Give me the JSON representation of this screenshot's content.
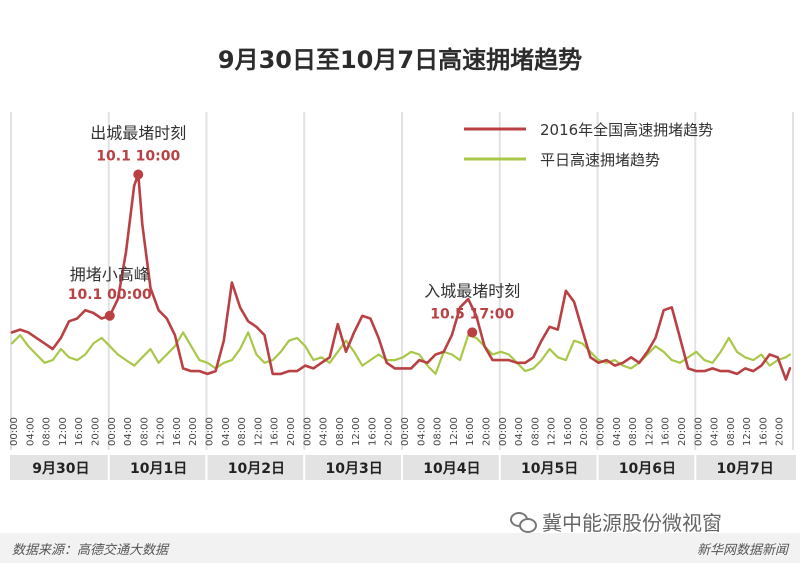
{
  "title": "9月30日至10月7日高速拥堵趋势",
  "footer": {
    "source": "数据来源：高德交通大数据",
    "credit": "新华网数据新闻",
    "wechat": "冀中能源股份微视窗"
  },
  "colors": {
    "national": "#b94043",
    "weekday": "#a9c84a",
    "axis_band": "#e3e3e3",
    "annotation": "#b94043"
  },
  "annotations": [
    {
      "label": "拥堵小高峰",
      "time": "10.1 00:00"
    },
    {
      "label": "出城最堵时刻",
      "time": "10.1 10:00"
    },
    {
      "label": "入城最堵时刻",
      "time": "10.5 17:00"
    }
  ],
  "chart_data": {
    "type": "line",
    "title": "9月30日至10月7日高速拥堵趋势",
    "hours_per_day": 24,
    "days": [
      "9月30日",
      "10月1日",
      "10月2日",
      "10月3日",
      "10月4日",
      "10月5日",
      "10月6日",
      "10月7日"
    ],
    "tick_labels": [
      "00:00",
      "04:00",
      "08:00",
      "12:00",
      "16:00",
      "20:00"
    ],
    "ylim": [
      0,
      100
    ],
    "legend_position": "top-right",
    "grid": "vertical day separators",
    "series": [
      {
        "name": "2016年全国高速拥堵趋势",
        "color": "#b94043",
        "x_hours": [
          0,
          2,
          4,
          6,
          8,
          10,
          12,
          14,
          16,
          18,
          20,
          22,
          24,
          26,
          28,
          30,
          31,
          32,
          34,
          36,
          38,
          40,
          42,
          44,
          46,
          48,
          50,
          52,
          54,
          56,
          58,
          60,
          62,
          64,
          66,
          68,
          70,
          72,
          74,
          76,
          78,
          80,
          82,
          84,
          86,
          88,
          90,
          92,
          94,
          96,
          98,
          100,
          102,
          104,
          106,
          108,
          110,
          112,
          114,
          116,
          118,
          120,
          122,
          124,
          126,
          128,
          130,
          132,
          134,
          136,
          138,
          140,
          142,
          144,
          146,
          148,
          150,
          152,
          154,
          156,
          158,
          160,
          162,
          164,
          166,
          168,
          170,
          172,
          174,
          176,
          178,
          180,
          182,
          184,
          186,
          188,
          190,
          191
        ],
        "values": [
          19,
          20,
          19,
          17,
          15,
          13,
          17,
          23,
          24,
          27,
          26,
          24,
          25,
          31,
          48,
          72,
          76,
          58,
          35,
          27,
          24,
          18,
          6,
          5,
          5,
          4,
          5,
          16,
          37,
          28,
          23,
          21,
          18,
          4,
          4,
          5,
          5,
          7,
          6,
          8,
          10,
          22,
          12,
          19,
          25,
          24,
          17,
          8,
          6,
          6,
          6,
          9,
          8,
          11,
          12,
          18,
          28,
          31,
          25,
          14,
          9,
          9,
          9,
          8,
          8,
          10,
          16,
          21,
          20,
          34,
          30,
          20,
          10,
          8,
          9,
          7,
          8,
          10,
          8,
          12,
          17,
          27,
          28,
          17,
          6,
          5,
          5,
          6,
          5,
          5,
          4,
          6,
          5,
          7,
          11,
          10,
          2,
          6
        ]
      },
      {
        "name": "平日高速拥堵趋势",
        "color": "#a9c84a",
        "x_hours": [
          0,
          2,
          4,
          6,
          8,
          10,
          12,
          14,
          16,
          18,
          20,
          22,
          24,
          26,
          28,
          30,
          32,
          34,
          36,
          38,
          40,
          42,
          44,
          46,
          48,
          50,
          52,
          54,
          56,
          58,
          60,
          62,
          64,
          66,
          68,
          70,
          72,
          74,
          76,
          78,
          80,
          82,
          84,
          86,
          88,
          90,
          92,
          94,
          96,
          98,
          100,
          102,
          104,
          106,
          108,
          110,
          112,
          114,
          116,
          118,
          120,
          122,
          124,
          126,
          128,
          130,
          132,
          134,
          136,
          138,
          140,
          142,
          144,
          146,
          148,
          150,
          152,
          154,
          156,
          158,
          160,
          162,
          164,
          166,
          168,
          170,
          172,
          174,
          176,
          178,
          180,
          182,
          184,
          186,
          188,
          190,
          191
        ],
        "values": [
          15,
          18,
          14,
          11,
          8,
          9,
          13,
          10,
          9,
          11,
          15,
          17,
          14,
          11,
          9,
          7,
          10,
          13,
          8,
          11,
          14,
          19,
          14,
          9,
          8,
          6,
          8,
          9,
          13,
          19,
          11,
          8,
          9,
          12,
          16,
          17,
          14,
          9,
          10,
          8,
          12,
          16,
          12,
          7,
          9,
          11,
          9,
          9,
          10,
          12,
          11,
          7,
          4,
          12,
          11,
          9,
          18,
          17,
          14,
          11,
          12,
          11,
          8,
          5,
          6,
          9,
          13,
          10,
          9,
          16,
          15,
          12,
          9,
          8,
          9,
          7,
          6,
          8,
          11,
          14,
          12,
          9,
          8,
          10,
          12,
          9,
          8,
          12,
          17,
          12,
          10,
          9,
          11,
          7,
          9,
          10,
          11
        ]
      }
    ]
  }
}
